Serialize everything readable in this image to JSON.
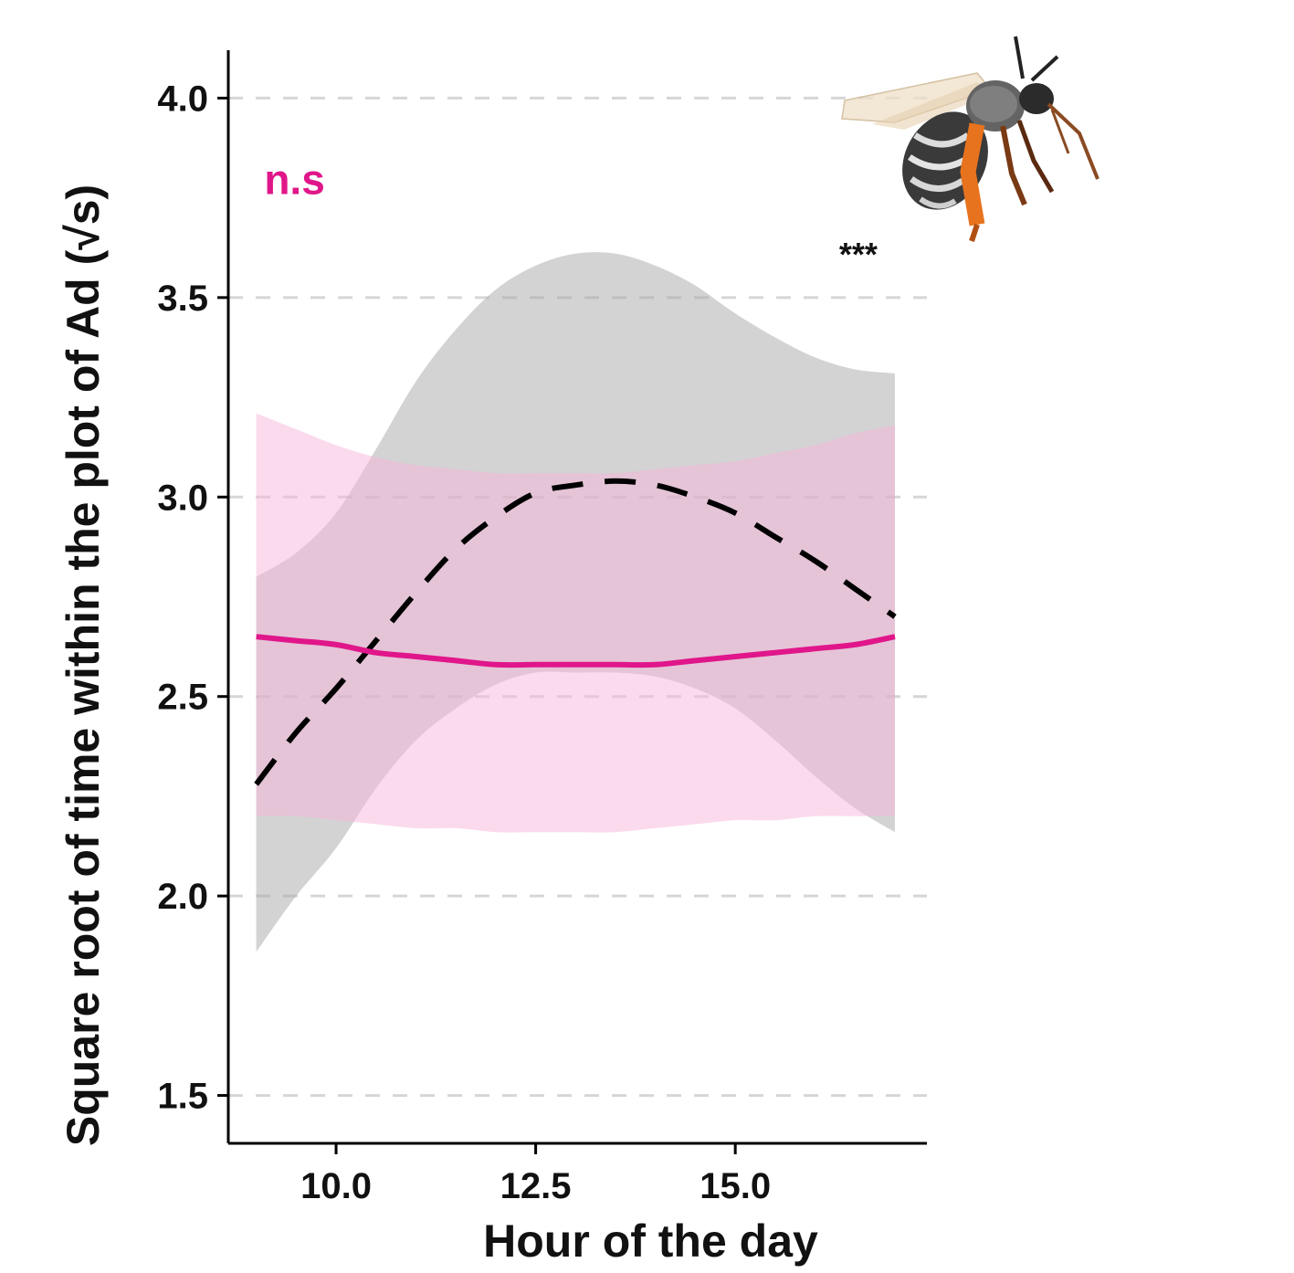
{
  "chart_data": {
    "type": "line",
    "title": "",
    "xlabel": "Hour of the day",
    "ylabel": "Square root of time within the plot of Ad (√s)",
    "xlim": [
      8.65,
      17.4
    ],
    "ylim": [
      1.38,
      4.12
    ],
    "x_ticks": [
      10.0,
      12.5,
      15.0
    ],
    "x_tick_labels": [
      "10.0",
      "12.5",
      "15.0"
    ],
    "y_ticks": [
      1.5,
      2.0,
      2.5,
      3.0,
      3.5,
      4.0
    ],
    "y_tick_labels": [
      "1.5",
      "2.0",
      "2.5",
      "3.0",
      "3.5",
      "4.0"
    ],
    "grid": "horizontal dashed",
    "x": [
      9.0,
      9.5,
      10.0,
      10.5,
      11.0,
      11.5,
      12.0,
      12.5,
      13.0,
      13.5,
      14.0,
      14.5,
      15.0,
      15.5,
      16.0,
      16.5,
      17.0
    ],
    "series": [
      {
        "color": "#000000",
        "line_style": "dashed",
        "band_color": "#a8a8a8",
        "values": [
          2.28,
          2.41,
          2.52,
          2.64,
          2.76,
          2.87,
          2.95,
          3.01,
          3.03,
          3.04,
          3.03,
          3.0,
          2.96,
          2.9,
          2.84,
          2.77,
          2.7
        ],
        "ci_lower": [
          1.86,
          2.0,
          2.12,
          2.27,
          2.39,
          2.47,
          2.53,
          2.56,
          2.56,
          2.56,
          2.55,
          2.52,
          2.47,
          2.39,
          2.3,
          2.22,
          2.16
        ],
        "ci_upper": [
          2.8,
          2.86,
          2.96,
          3.12,
          3.29,
          3.42,
          3.52,
          3.58,
          3.61,
          3.61,
          3.58,
          3.53,
          3.46,
          3.4,
          3.35,
          3.32,
          3.31
        ]
      },
      {
        "color": "#e0168a",
        "line_style": "solid",
        "band_color": "#f7b6dc",
        "values": [
          2.65,
          2.64,
          2.63,
          2.61,
          2.6,
          2.59,
          2.58,
          2.58,
          2.58,
          2.58,
          2.58,
          2.59,
          2.6,
          2.61,
          2.62,
          2.63,
          2.65
        ],
        "ci_lower": [
          2.2,
          2.2,
          2.19,
          2.18,
          2.17,
          2.17,
          2.16,
          2.16,
          2.16,
          2.16,
          2.17,
          2.18,
          2.19,
          2.19,
          2.2,
          2.2,
          2.2
        ],
        "ci_upper": [
          3.21,
          3.17,
          3.13,
          3.1,
          3.08,
          3.07,
          3.06,
          3.06,
          3.06,
          3.06,
          3.07,
          3.08,
          3.09,
          3.11,
          3.13,
          3.16,
          3.18
        ]
      }
    ],
    "annotations": [
      {
        "text": "n.s",
        "color": "#e0168a",
        "x": 9.1,
        "y": 3.76
      },
      {
        "text": "***",
        "color": "#111111",
        "x": 16.3,
        "y": 3.58
      }
    ]
  },
  "illustration": {
    "icon": "bee-icon"
  }
}
